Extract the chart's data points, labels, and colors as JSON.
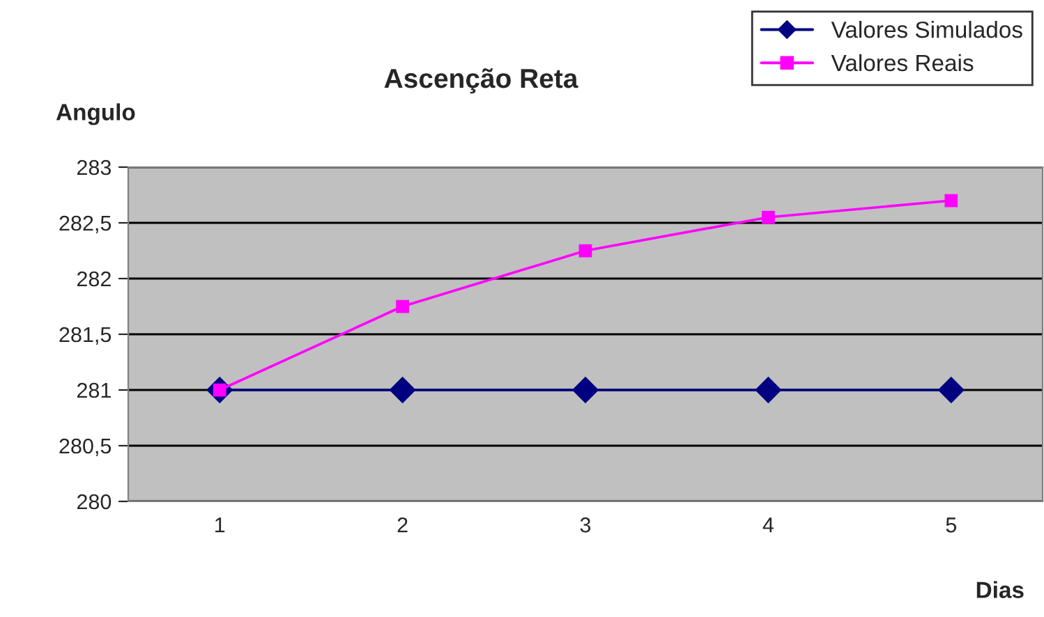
{
  "chart_data": {
    "type": "line",
    "title": "Ascenção Reta",
    "xlabel": "Dias",
    "ylabel": "Angulo",
    "categories": [
      "1",
      "2",
      "3",
      "4",
      "5"
    ],
    "series": [
      {
        "name": "Valores Simulados",
        "color": "#000080",
        "marker": "diamond",
        "values": [
          281,
          281,
          281,
          281,
          281
        ]
      },
      {
        "name": "Valores Reais",
        "color": "#ff00ff",
        "marker": "square",
        "values": [
          281,
          281.75,
          282.25,
          282.55,
          282.7
        ]
      }
    ],
    "ylim": [
      280,
      283
    ],
    "yticks": [
      280,
      {
        "value": 280.5,
        "label": "280,5"
      },
      281,
      {
        "value": 281.5,
        "label": "281,5"
      },
      282,
      {
        "value": 282.5,
        "label": "282,5"
      },
      283
    ],
    "grid": "y",
    "legend": "top right",
    "line_style": "solid"
  }
}
